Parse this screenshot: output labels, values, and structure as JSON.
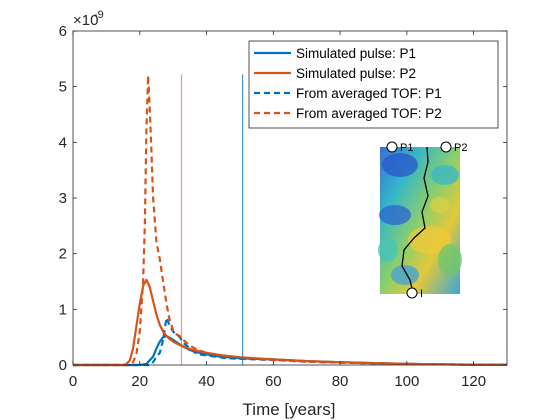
{
  "chart_data": {
    "type": "line",
    "xlabel": "Time [years]",
    "ylabel": "",
    "y_exponent_label": "×10",
    "y_exponent_value": "-9",
    "xlim": [
      0,
      130
    ],
    "ylim": [
      0,
      6
    ],
    "y_scale": 1e-09,
    "xticks": [
      0,
      20,
      40,
      60,
      80,
      100,
      120
    ],
    "yticks": [
      0,
      1,
      2,
      3,
      4,
      5,
      6
    ],
    "grid": false,
    "legend_position": "top-right",
    "colors": {
      "blue": "#0072BD",
      "orange": "#D95319",
      "light_orange": "#EE9A80",
      "light_blue": "#3F95D0"
    },
    "series": [
      {
        "name": "Simulated pulse: P1",
        "style": "solid",
        "color": "#0072BD",
        "x": [
          0,
          20,
          22,
          24,
          25,
          26,
          27,
          28,
          29,
          30,
          31,
          32,
          33,
          35,
          37,
          40,
          43,
          46,
          50,
          55,
          60,
          70,
          80,
          90,
          100,
          110,
          120,
          130
        ],
        "y": [
          0,
          0,
          0.02,
          0.15,
          0.3,
          0.42,
          0.5,
          0.52,
          0.49,
          0.45,
          0.41,
          0.37,
          0.33,
          0.27,
          0.23,
          0.19,
          0.16,
          0.14,
          0.12,
          0.11,
          0.1,
          0.07,
          0.05,
          0.035,
          0.02,
          0.012,
          0.006,
          0.003
        ]
      },
      {
        "name": "Simulated pulse: P2",
        "style": "solid",
        "color": "#D95319",
        "x": [
          0,
          15,
          16,
          17,
          18,
          19,
          20,
          21,
          22,
          23,
          24,
          25,
          26,
          27,
          28,
          30,
          32,
          34,
          36,
          40,
          45,
          50,
          55,
          60,
          70,
          80,
          90,
          100,
          110,
          120,
          130
        ],
        "y": [
          0,
          0,
          0.02,
          0.08,
          0.3,
          0.7,
          1.1,
          1.42,
          1.53,
          1.4,
          1.15,
          0.9,
          0.72,
          0.6,
          0.52,
          0.42,
          0.36,
          0.31,
          0.27,
          0.22,
          0.17,
          0.14,
          0.12,
          0.1,
          0.07,
          0.05,
          0.035,
          0.02,
          0.012,
          0.006,
          0.003
        ]
      },
      {
        "name": "From averaged TOF: P1",
        "style": "dashed",
        "color": "#0072BD",
        "x": [
          0,
          20,
          23,
          24,
          25,
          26,
          27,
          28,
          29,
          30,
          31,
          32,
          33,
          34,
          35,
          36,
          37,
          40,
          45,
          50,
          55,
          60,
          70,
          80,
          90,
          100,
          110,
          120,
          130
        ],
        "y": [
          0,
          0,
          0,
          0.05,
          0.15,
          0.22,
          0.45,
          0.85,
          0.7,
          0.6,
          0.55,
          0.5,
          0.4,
          0.35,
          0.3,
          0.25,
          0.2,
          0.17,
          0.13,
          0.11,
          0.1,
          0.09,
          0.06,
          0.045,
          0.03,
          0.02,
          0.012,
          0.006,
          0.003
        ]
      },
      {
        "name": "From averaged TOF: P2",
        "style": "dashed",
        "color": "#D95319",
        "x": [
          0,
          17,
          18,
          19,
          20,
          21,
          21.5,
          22,
          22.5,
          23,
          23.5,
          24,
          24.5,
          25,
          26,
          27,
          28,
          29,
          30,
          31,
          32,
          33,
          34,
          35,
          37,
          40,
          45,
          50,
          60,
          70,
          80,
          90,
          100,
          110,
          120,
          130
        ],
        "y": [
          0,
          0,
          0.05,
          0.2,
          0.6,
          1.5,
          2.5,
          4.2,
          5.2,
          4.6,
          3.8,
          3.0,
          2.6,
          2.2,
          1.9,
          1.5,
          1.1,
          0.8,
          0.62,
          0.55,
          0.52,
          0.45,
          0.4,
          0.35,
          0.28,
          0.22,
          0.16,
          0.12,
          0.09,
          0.06,
          0.045,
          0.03,
          0.02,
          0.012,
          0.006,
          0.003
        ]
      }
    ],
    "vertical_lines": [
      {
        "x": 32.5,
        "y_top": 5.22,
        "color": "#EE9A80"
      },
      {
        "x": 50.8,
        "y_top": 5.22,
        "color": "#3F95D0"
      }
    ],
    "inset": {
      "labels": [
        "P1",
        "P2",
        "I"
      ]
    }
  }
}
